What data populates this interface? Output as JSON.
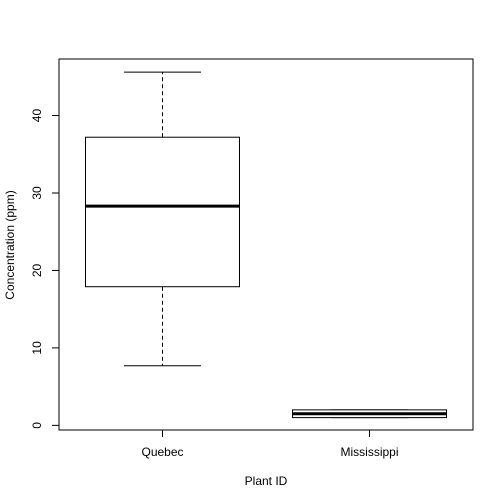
{
  "chart_data": {
    "type": "boxplot",
    "xlabel": "Plant ID",
    "ylabel": "Concentration (ppm)",
    "categories": [
      "Quebec",
      "Mississippi"
    ],
    "boxes": [
      {
        "label": "Quebec",
        "min": 7.7,
        "q1": 17.9,
        "median": 28.3,
        "q3": 37.2,
        "max": 45.6
      },
      {
        "label": "Mississippi",
        "min": 1.0,
        "q1": 1.0,
        "median": 1.5,
        "q3": 2.0,
        "max": 2.0
      }
    ],
    "yticks": [
      0,
      10,
      20,
      30,
      40
    ],
    "ylim": [
      -0.6,
      47.3
    ],
    "grid": false,
    "colors": {
      "stroke": "#000000",
      "fill": "#ffffff"
    }
  }
}
